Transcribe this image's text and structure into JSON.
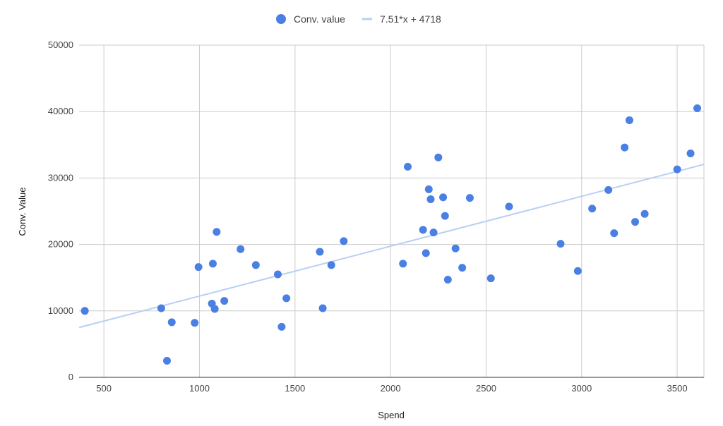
{
  "chart_data": {
    "type": "scatter",
    "title": "",
    "xlabel": "Spend",
    "ylabel": "Conv. Value",
    "xlim": [
      370,
      3640
    ],
    "ylim": [
      0,
      50000
    ],
    "x_ticks": [
      "500",
      "1000",
      "1500",
      "2000",
      "2500",
      "3000",
      "3500"
    ],
    "y_ticks": [
      "0",
      "10000",
      "20000",
      "30000",
      "40000",
      "50000"
    ],
    "grid": true,
    "legend_position": "top-center",
    "series": [
      {
        "name": "Conv. value",
        "color": "#4a7fe3",
        "points": [
          [
            400,
            10000
          ],
          [
            800,
            10400
          ],
          [
            830,
            2500
          ],
          [
            855,
            8300
          ],
          [
            975,
            8200
          ],
          [
            995,
            16600
          ],
          [
            1065,
            11100
          ],
          [
            1070,
            17100
          ],
          [
            1080,
            10300
          ],
          [
            1090,
            21900
          ],
          [
            1130,
            11500
          ],
          [
            1215,
            19300
          ],
          [
            1295,
            16900
          ],
          [
            1410,
            15500
          ],
          [
            1430,
            7600
          ],
          [
            1455,
            11900
          ],
          [
            1630,
            18900
          ],
          [
            1645,
            10400
          ],
          [
            1690,
            16900
          ],
          [
            1755,
            20500
          ],
          [
            2065,
            17100
          ],
          [
            2090,
            31700
          ],
          [
            2170,
            22200
          ],
          [
            2185,
            18700
          ],
          [
            2200,
            28300
          ],
          [
            2210,
            26800
          ],
          [
            2225,
            21800
          ],
          [
            2250,
            33100
          ],
          [
            2275,
            27100
          ],
          [
            2285,
            24300
          ],
          [
            2300,
            14700
          ],
          [
            2340,
            19400
          ],
          [
            2375,
            16500
          ],
          [
            2415,
            27000
          ],
          [
            2525,
            14900
          ],
          [
            2620,
            25700
          ],
          [
            2890,
            20100
          ],
          [
            2980,
            16000
          ],
          [
            3055,
            25400
          ],
          [
            3140,
            28200
          ],
          [
            3170,
            21700
          ],
          [
            3225,
            34600
          ],
          [
            3250,
            38700
          ],
          [
            3280,
            23400
          ],
          [
            3330,
            24600
          ],
          [
            3500,
            31300
          ],
          [
            3570,
            33700
          ],
          [
            3605,
            40500
          ]
        ]
      }
    ],
    "trendline": {
      "label": "7.51*x + 4718",
      "slope": 7.51,
      "intercept": 4718,
      "x_range": [
        370,
        3640
      ],
      "color": "#b8cff5"
    }
  }
}
